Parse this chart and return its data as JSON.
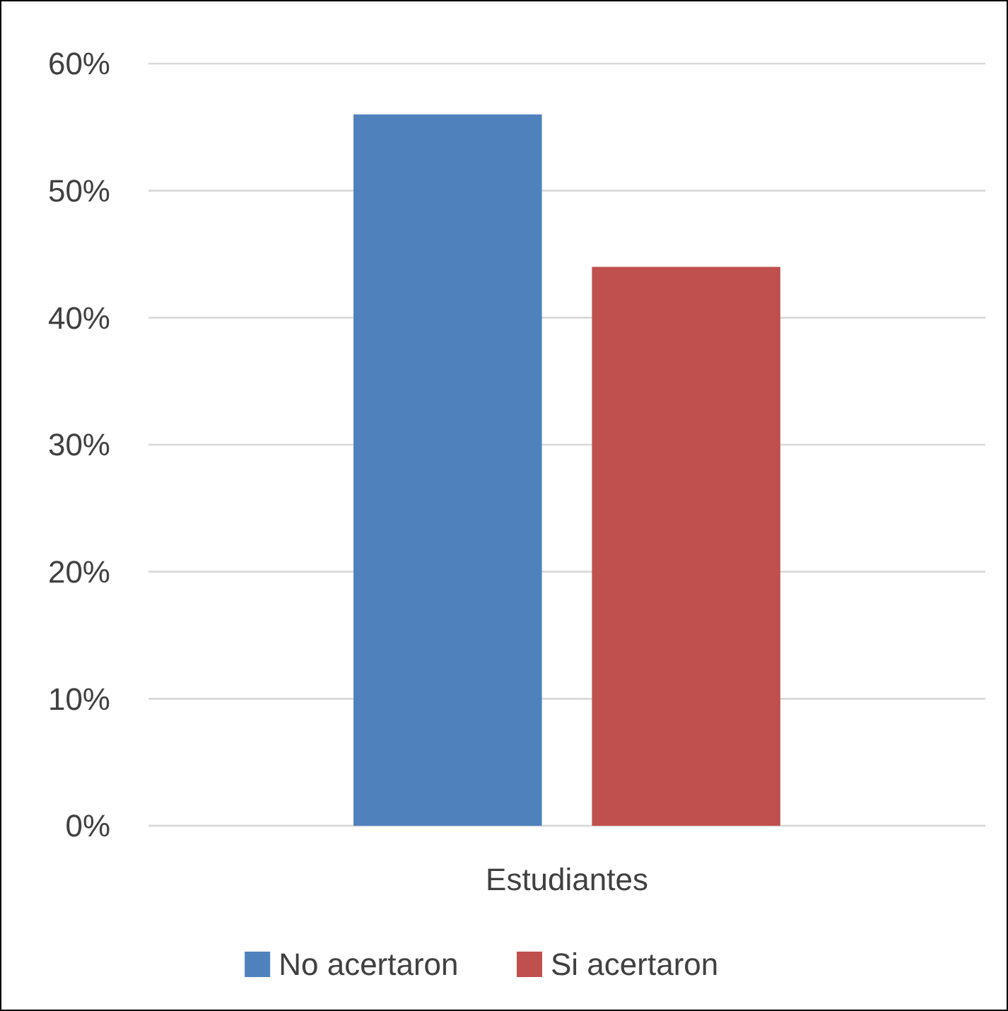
{
  "chart_data": {
    "type": "bar",
    "categories": [
      "Estudiantes"
    ],
    "series": [
      {
        "name": "No acertaron",
        "color": "#4f81bd",
        "values": [
          56
        ]
      },
      {
        "name": "Si acertaron",
        "color": "#c0504d",
        "values": [
          44
        ]
      }
    ],
    "ylim": [
      0,
      60
    ],
    "yticks": [
      {
        "value": 0,
        "label": "0%"
      },
      {
        "value": 10,
        "label": "10%"
      },
      {
        "value": 20,
        "label": "20%"
      },
      {
        "value": 30,
        "label": "30%"
      },
      {
        "value": 40,
        "label": "40%"
      },
      {
        "value": 50,
        "label": "50%"
      },
      {
        "value": 60,
        "label": "60%"
      }
    ],
    "grid": "y",
    "legend": "bottom"
  }
}
